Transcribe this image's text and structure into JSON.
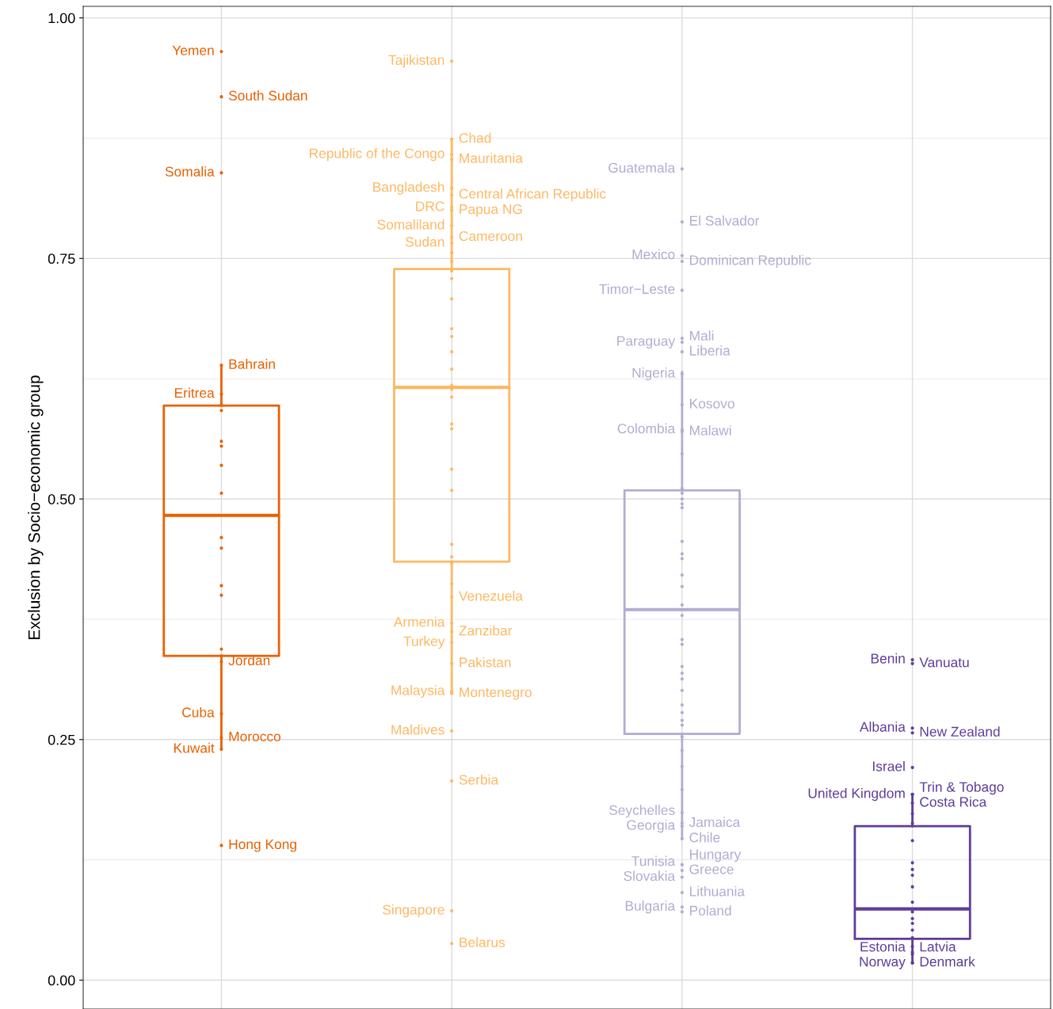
{
  "chart_data": {
    "type": "box",
    "ylabel": "Exclusion by Socio−economic group",
    "categories": [
      null,
      null,
      null,
      null
    ],
    "colors": [
      "#e66101",
      "#fdb863",
      "#b2abd2",
      "#5e3c99"
    ],
    "boxes": [
      {
        "low": 0.24,
        "q1": 0.337,
        "median": 0.483,
        "q3": 0.597,
        "high": 0.639
      },
      {
        "low": 0.298,
        "q1": 0.435,
        "median": 0.616,
        "q3": 0.739,
        "high": 0.874
      },
      {
        "low": 0.147,
        "q1": 0.256,
        "median": 0.385,
        "q3": 0.509,
        "high": 0.632
      },
      {
        "low": 0.018,
        "q1": 0.043,
        "median": 0.074,
        "q3": 0.16,
        "high": 0.193
      }
    ],
    "series": [
      {
        "type": "scatter",
        "colors": [
          "#e66101",
          "#fdb863",
          "#b2abd2",
          "#5e3c99"
        ],
        "values": [
          0.965,
          0.858,
          0.843,
          0.193
        ],
        "value_labels": [
          "Yemen",
          "Republic of the Congo",
          "Guatemala",
          "United Kingdom"
        ]
      },
      {
        "type": "scatter",
        "colors": [
          "#e66101",
          "#fdb863",
          "#b2abd2",
          "#5e3c99"
        ],
        "values": [
          0.918,
          0.874,
          0.788,
          0.193
        ],
        "value_labels": [
          "South Sudan",
          "Chad",
          "El Salvador",
          "Trin & Tobago"
        ]
      },
      {
        "type": "scatter",
        "colors": [
          "#e66101",
          "#fdb863",
          "#b2abd2",
          "#5e3c99"
        ],
        "values": [
          0.839,
          0.955,
          0.753,
          0.333
        ],
        "value_labels": [
          "Somalia",
          "Tajikistan",
          "Mexico",
          "Benin"
        ]
      },
      {
        "type": "scatter",
        "colors": [
          "#e66101",
          "#fdb863",
          "#b2abd2",
          "#5e3c99"
        ],
        "values": [
          0.639,
          0.853,
          0.747,
          0.329
        ],
        "value_labels": [
          "Bahrain",
          "Mauritania",
          "Dominican Republic",
          "Vanuatu"
        ]
      },
      {
        "type": "scatter",
        "colors": [
          "#e66101",
          "#fdb863",
          "#b2abd2",
          "#5e3c99"
        ],
        "values": [
          0.609,
          0.823,
          0.717,
          0.262
        ],
        "value_labels": [
          "Eritrea",
          "Bangladesh",
          "Timor−Leste",
          "Albania"
        ]
      },
      {
        "type": "scatter",
        "colors": [
          "#e66101",
          "#fdb863",
          "#b2abd2",
          "#5e3c99"
        ],
        "values": [
          0.331,
          0.816,
          0.667,
          0.257
        ],
        "value_labels": [
          "Jordan",
          "Central African Republic",
          "Mali",
          "New Zealand"
        ]
      },
      {
        "type": "scatter",
        "colors": [
          "#e66101",
          "#fdb863",
          "#b2abd2",
          "#5e3c99"
        ],
        "values": [
          0.277,
          0.803,
          0.663,
          0.221
        ],
        "value_labels": [
          "Cuba",
          "DRC",
          "Paraguay",
          "Israel"
        ]
      },
      {
        "type": "scatter",
        "colors": [
          "#e66101",
          "#fdb863",
          "#b2abd2",
          "#5e3c99"
        ],
        "values": [
          0.252,
          0.8,
          0.653,
          0.184
        ],
        "value_labels": [
          "Morocco",
          "Papua NG",
          "Liberia",
          "Costa Rica"
        ]
      },
      {
        "type": "scatter",
        "colors": [
          "#e66101",
          "#fdb863",
          "#b2abd2",
          "#5e3c99"
        ],
        "values": [
          0.24,
          0.784,
          0.63,
          0.029
        ],
        "value_labels": [
          "Kuwait",
          "Somaliland",
          "Nigeria",
          "Estonia"
        ]
      },
      {
        "type": "scatter",
        "colors": [
          "#e66101",
          "#fdb863",
          "#b2abd2",
          "#5e3c99"
        ],
        "values": [
          0.14,
          0.772,
          0.598,
          0.027
        ],
        "value_labels": [
          "Hong Kong",
          "Cameroon",
          "Kosovo",
          "Latvia"
        ]
      },
      {
        "type": "scatter",
        "colors": [
          "#e66101",
          "#fdb863",
          "#b2abd2",
          "#5e3c99"
        ],
        "values": [
          0.598,
          0.766,
          0.572,
          0.018
        ],
        "value_labels": [
          null,
          "Sudan",
          "Colombia",
          "Norway"
        ]
      },
      {
        "type": "scatter",
        "colors": [
          "#e66101",
          "#fdb863",
          "#b2abd2",
          "#5e3c99"
        ],
        "values": [
          0.592,
          0.398,
          0.57,
          0.018
        ],
        "value_labels": [
          null,
          "Venezuela",
          "Malawi",
          "Denmark"
        ]
      },
      {
        "type": "scatter",
        "colors": [
          "#e66101",
          "#fdb863",
          "#b2abd2",
          "#5e3c99"
        ],
        "values": [
          0.56,
          0.371,
          0.174,
          0.173
        ],
        "value_labels": [
          null,
          "Armenia",
          "Seychelles",
          null
        ]
      },
      {
        "type": "scatter",
        "colors": [
          "#e66101",
          "#fdb863",
          "#b2abd2",
          "#5e3c99"
        ],
        "values": [
          0.555,
          0.362,
          0.163,
          0.163
        ],
        "value_labels": [
          null,
          "Zanzibar",
          "Jamaica",
          null
        ]
      },
      {
        "type": "scatter",
        "colors": [
          "#e66101",
          "#fdb863",
          "#b2abd2",
          "#5e3c99"
        ],
        "values": [
          0.535,
          0.351,
          0.16,
          0.145
        ],
        "value_labels": [
          null,
          "Turkey",
          "Georgia",
          null
        ]
      },
      {
        "type": "scatter",
        "colors": [
          "#e66101",
          "#fdb863",
          "#b2abd2",
          "#5e3c99"
        ],
        "values": [
          0.506,
          0.329,
          0.147,
          0.122
        ],
        "value_labels": [
          null,
          "Pakistan",
          "Chile",
          null
        ]
      },
      {
        "type": "scatter",
        "colors": [
          "#e66101",
          "#fdb863",
          "#b2abd2",
          "#5e3c99"
        ],
        "values": [
          0.46,
          0.3,
          0.12,
          0.115
        ],
        "value_labels": [
          null,
          "Malaysia",
          "Tunisia",
          null
        ]
      },
      {
        "type": "scatter",
        "colors": [
          "#e66101",
          "#fdb863",
          "#b2abd2",
          "#5e3c99"
        ],
        "values": [
          0.449,
          0.298,
          0.12,
          0.109
        ],
        "value_labels": [
          null,
          "Montenegro",
          "Hungary",
          null
        ]
      },
      {
        "type": "scatter",
        "colors": [
          "#e66101",
          "#fdb863",
          "#b2abd2",
          "#5e3c99"
        ],
        "values": [
          0.41,
          0.259,
          0.107,
          0.097
        ],
        "value_labels": [
          null,
          "Maldives",
          "Slovakia",
          null
        ]
      },
      {
        "type": "scatter",
        "colors": [
          "#e66101",
          "#fdb863",
          "#b2abd2",
          "#5e3c99"
        ],
        "values": [
          0.4,
          0.207,
          0.114,
          0.081
        ],
        "value_labels": [
          null,
          "Serbia",
          "Greece",
          null
        ]
      },
      {
        "type": "scatter",
        "colors": [
          "#e66101",
          "#fdb863",
          "#b2abd2",
          "#5e3c99"
        ],
        "values": [
          0.344,
          0.072,
          0.076,
          0.071
        ],
        "value_labels": [
          null,
          "Singapore",
          "Bulgaria",
          null
        ]
      },
      {
        "type": "scatter",
        "colors": [
          "#e66101",
          "#fdb863",
          "#b2abd2",
          "#5e3c99"
        ],
        "values": [
          0.337,
          0.038,
          0.091,
          0.064
        ],
        "value_labels": [
          null,
          "Belarus",
          "Lithuania",
          null
        ]
      },
      {
        "type": "scatter",
        "colors": [
          "#e66101",
          "#fdb863",
          "#b2abd2",
          "#5e3c99"
        ],
        "values": [
          null,
          0.756,
          0.547,
          0.059
        ]
      },
      {
        "type": "scatter",
        "colors": [
          "#e66101",
          "#fdb863",
          "#b2abd2",
          "#5e3c99"
        ],
        "values": [
          null,
          0.747,
          0.071,
          0.052
        ],
        "value_labels": [
          null,
          null,
          "Poland",
          null
        ]
      },
      {
        "type": "scatter",
        "colors": [
          "#e66101",
          "#fdb863",
          "#b2abd2",
          "#5e3c99"
        ],
        "values": [
          null,
          0.737,
          0.511,
          0.044
        ]
      },
      {
        "type": "scatter",
        "colors": [
          "#e66101",
          "#fdb863",
          "#b2abd2",
          "#5e3c99"
        ],
        "values": [
          null,
          0.729,
          0.506,
          0.035
        ]
      },
      {
        "type": "scatter",
        "colors": [
          "#e66101",
          "#fdb863",
          "#b2abd2",
          "#5e3c99"
        ],
        "values": [
          null,
          0.708,
          0.5,
          null
        ]
      },
      {
        "type": "scatter",
        "colors": [
          "#e66101",
          "#fdb863",
          "#b2abd2",
          "#5e3c99"
        ],
        "values": [
          null,
          0.677,
          0.495,
          null
        ]
      },
      {
        "type": "scatter",
        "colors": [
          "#e66101",
          "#fdb863",
          "#b2abd2",
          "#5e3c99"
        ],
        "values": [
          null,
          0.669,
          0.491,
          null
        ]
      },
      {
        "type": "scatter",
        "colors": [
          "#e66101",
          "#fdb863",
          "#b2abd2",
          "#5e3c99"
        ],
        "values": [
          null,
          0.653,
          0.456,
          null
        ]
      },
      {
        "type": "scatter",
        "colors": [
          "#e66101",
          "#fdb863",
          "#b2abd2",
          "#5e3c99"
        ],
        "values": [
          null,
          0.635,
          0.443,
          null
        ]
      },
      {
        "type": "scatter",
        "colors": [
          "#e66101",
          "#fdb863",
          "#b2abd2",
          "#5e3c99"
        ],
        "values": [
          null,
          0.618,
          0.438,
          null
        ]
      },
      {
        "type": "scatter",
        "colors": [
          "#e66101",
          "#fdb863",
          "#b2abd2",
          "#5e3c99"
        ],
        "values": [
          null,
          0.614,
          0.421,
          null
        ]
      },
      {
        "type": "scatter",
        "colors": [
          "#e66101",
          "#fdb863",
          "#b2abd2",
          "#5e3c99"
        ],
        "values": [
          null,
          0.606,
          0.409,
          null
        ]
      },
      {
        "type": "scatter",
        "colors": [
          "#e66101",
          "#fdb863",
          "#b2abd2",
          "#5e3c99"
        ],
        "values": [
          null,
          0.578,
          0.39,
          null
        ]
      },
      {
        "type": "scatter",
        "colors": [
          "#e66101",
          "#fdb863",
          "#b2abd2",
          "#5e3c99"
        ],
        "values": [
          null,
          0.573,
          0.379,
          null
        ]
      },
      {
        "type": "scatter",
        "colors": [
          "#e66101",
          "#fdb863",
          "#b2abd2",
          "#5e3c99"
        ],
        "values": [
          null,
          0.531,
          0.354,
          null
        ]
      },
      {
        "type": "scatter",
        "colors": [
          "#e66101",
          "#fdb863",
          "#b2abd2",
          "#5e3c99"
        ],
        "values": [
          null,
          0.509,
          0.349,
          null
        ]
      },
      {
        "type": "scatter",
        "colors": [
          "#e66101",
          "#fdb863",
          "#b2abd2",
          "#5e3c99"
        ],
        "values": [
          null,
          0.453,
          0.326,
          null
        ]
      },
      {
        "type": "scatter",
        "colors": [
          "#e66101",
          "#fdb863",
          "#b2abd2",
          "#5e3c99"
        ],
        "values": [
          null,
          0.44,
          0.319,
          null
        ]
      },
      {
        "type": "scatter",
        "colors": [
          "#e66101",
          "#fdb863",
          "#b2abd2",
          "#5e3c99"
        ],
        "values": [
          null,
          0.433,
          0.313,
          null
        ]
      },
      {
        "type": "scatter",
        "colors": [
          "#e66101",
          "#fdb863",
          "#b2abd2",
          "#5e3c99"
        ],
        "values": [
          null,
          0.412,
          0.301,
          null
        ]
      },
      {
        "type": "scatter",
        "colors": [
          "#e66101",
          "#fdb863",
          "#b2abd2",
          "#5e3c99"
        ],
        "values": [
          null,
          null,
          0.286,
          null
        ]
      },
      {
        "type": "scatter",
        "colors": [
          "#e66101",
          "#fdb863",
          "#b2abd2",
          "#5e3c99"
        ],
        "values": [
          null,
          null,
          0.278,
          null
        ]
      },
      {
        "type": "scatter",
        "colors": [
          "#e66101",
          "#fdb863",
          "#b2abd2",
          "#5e3c99"
        ],
        "values": [
          null,
          null,
          0.27,
          null
        ]
      },
      {
        "type": "scatter",
        "colors": [
          "#e66101",
          "#fdb863",
          "#b2abd2",
          "#5e3c99"
        ],
        "values": [
          null,
          null,
          0.265,
          null
        ]
      },
      {
        "type": "scatter",
        "colors": [
          "#e66101",
          "#fdb863",
          "#b2abd2",
          "#5e3c99"
        ],
        "values": [
          null,
          null,
          0.253,
          null
        ]
      },
      {
        "type": "scatter",
        "colors": [
          "#e66101",
          "#fdb863",
          "#b2abd2",
          "#5e3c99"
        ],
        "values": [
          null,
          null,
          0.239,
          null
        ]
      },
      {
        "type": "scatter",
        "colors": [
          "#e66101",
          "#fdb863",
          "#b2abd2",
          "#5e3c99"
        ],
        "values": [
          null,
          null,
          0.222,
          null
        ]
      },
      {
        "type": "scatter",
        "colors": [
          "#e66101",
          "#fdb863",
          "#b2abd2",
          "#5e3c99"
        ],
        "values": [
          null,
          null,
          0.198,
          null
        ]
      }
    ],
    "ylim": [
      -0.03,
      1.012
    ],
    "yticks": [
      {
        "value": 0,
        "label": "0.00"
      },
      {
        "value": 0.25,
        "label": "0.25"
      },
      {
        "value": 0.5,
        "label": "0.50"
      },
      {
        "value": 0.75,
        "label": "0.75"
      },
      {
        "value": 1,
        "label": "1.00"
      }
    ],
    "grid": true,
    "tick_labels": "y"
  }
}
